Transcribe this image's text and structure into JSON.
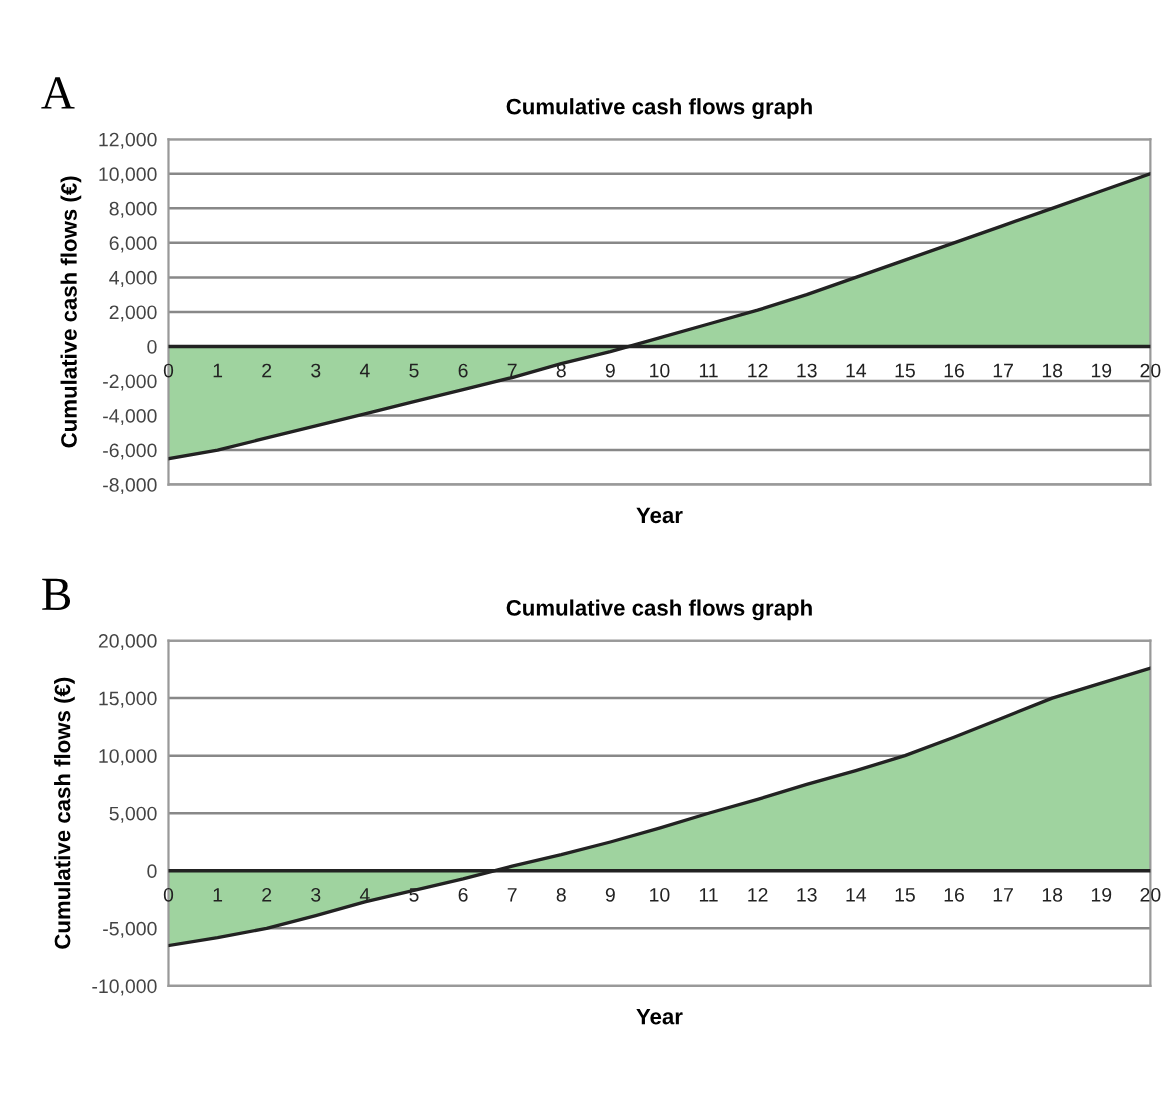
{
  "chart_data": [
    {
      "type": "area",
      "title": "Cumulative cash flows graph",
      "xlabel": "Year",
      "ylabel": "Cumulative cash flows (€)",
      "annotations": [
        "A"
      ],
      "categories": [
        "0",
        "1",
        "2",
        "3",
        "4",
        "5",
        "6",
        "7",
        "8",
        "9",
        "10",
        "11",
        "12",
        "13",
        "14",
        "15",
        "16",
        "17",
        "18",
        "19",
        "20"
      ],
      "series": [
        {
          "color": "#9fd39f",
          "values": [
            -6500,
            -6000,
            -5300,
            -4600,
            -3900,
            -3200,
            -2500,
            -1800,
            -1000,
            -300,
            500,
            1300,
            2100,
            3000,
            4000,
            5000,
            6000,
            7000,
            8000,
            9000,
            10000
          ]
        }
      ],
      "ylim": [
        -8000,
        12000
      ],
      "yticks": [
        {
          "value": -8000,
          "label": "-8,000"
        },
        {
          "value": -6000,
          "label": "-6,000"
        },
        {
          "value": -4000,
          "label": "-4,000"
        },
        {
          "value": -2000,
          "label": "-2,000"
        },
        0,
        {
          "value": 2000,
          "label": "2,000"
        },
        {
          "value": 4000,
          "label": "4,000"
        },
        {
          "value": 6000,
          "label": "6,000"
        },
        {
          "value": 8000,
          "label": "8,000"
        },
        {
          "value": 10000,
          "label": "10,000"
        },
        {
          "value": 12000,
          "label": "12,000"
        }
      ],
      "grid": "y"
    },
    {
      "type": "area",
      "title": "Cumulative cash flows graph",
      "xlabel": "Year",
      "ylabel": "Cumulative cash flows (€)",
      "annotations": [
        "B"
      ],
      "categories": [
        "0",
        "1",
        "2",
        "3",
        "4",
        "5",
        "6",
        "7",
        "8",
        "9",
        "10",
        "11",
        "12",
        "13",
        "14",
        "15",
        "16",
        "17",
        "18",
        "19",
        "20"
      ],
      "series": [
        {
          "color": "#9fd39f",
          "values": [
            -6500,
            -5800,
            -5000,
            -3900,
            -2700,
            -1700,
            -700,
            400,
            1400,
            2500,
            3700,
            5000,
            6200,
            7500,
            8700,
            10000,
            11600,
            13300,
            15000,
            16300,
            17600
          ]
        }
      ],
      "ylim": [
        -10000,
        20000
      ],
      "yticks": [
        {
          "value": -10000,
          "label": "-10,000"
        },
        {
          "value": -5000,
          "label": "-5,000"
        },
        0,
        {
          "value": 5000,
          "label": "5,000"
        },
        {
          "value": 10000,
          "label": "10,000"
        },
        {
          "value": 15000,
          "label": "15,000"
        },
        {
          "value": 20000,
          "label": "20,000"
        }
      ],
      "grid": "y"
    }
  ]
}
